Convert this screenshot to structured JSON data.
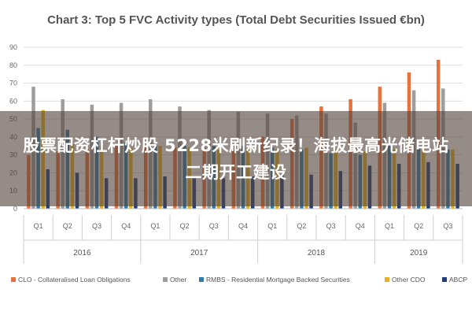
{
  "chart_data": {
    "type": "bar",
    "title": "Chart 3: Top 5 FVC Activity types (Total Debt Securities Issued €bn)",
    "xlabel": "",
    "ylabel": "",
    "ylim": [
      0,
      90
    ],
    "yticks": [
      0,
      10,
      20,
      30,
      40,
      50,
      60,
      70,
      80,
      90
    ],
    "grid": true,
    "legend_position": "bottom",
    "categories": [
      "Q1",
      "Q2",
      "Q3",
      "Q4",
      "Q1",
      "Q2",
      "Q3",
      "Q4",
      "Q1",
      "Q2",
      "Q3",
      "Q4",
      "Q1",
      "Q2",
      "Q3"
    ],
    "years": [
      {
        "label": "2016",
        "quarters": 4
      },
      {
        "label": "2017",
        "quarters": 4
      },
      {
        "label": "2018",
        "quarters": 4
      },
      {
        "label": "2019",
        "quarters": 3
      }
    ],
    "series": [
      {
        "name": "CLO - Collateralised Loan Obligations",
        "color": "#E8713C",
        "values": [
          30,
          32,
          33,
          35,
          35,
          34,
          34,
          37,
          40,
          50,
          57,
          61,
          68,
          76,
          83
        ]
      },
      {
        "name": "Other",
        "color": "#9E9E9E",
        "values": [
          68,
          61,
          58,
          59,
          61,
          57,
          55,
          54,
          53,
          52,
          53,
          48,
          59,
          66,
          67
        ]
      },
      {
        "name": "RMBS - Residential Mortgage Backed Securities",
        "color": "#2E7DA8",
        "values": [
          45,
          44,
          40,
          37,
          36,
          35,
          35,
          35,
          34,
          33,
          31,
          30,
          35,
          34,
          33
        ]
      },
      {
        "name": "Other CDO",
        "color": "#E6B31E",
        "values": [
          55,
          36,
          35,
          34,
          35,
          34,
          33,
          33,
          33,
          34,
          33,
          32,
          33,
          33,
          33
        ]
      },
      {
        "name": "ABCP",
        "color": "#1F3E78",
        "values": [
          22,
          20,
          17,
          17,
          18,
          17,
          17,
          18,
          19,
          19,
          21,
          24,
          25,
          26,
          25
        ]
      }
    ]
  },
  "overlay": {
    "text": "股票配资杠杆炒股 5228米刷新纪录！海拔最高光储电站二期开工建设"
  }
}
